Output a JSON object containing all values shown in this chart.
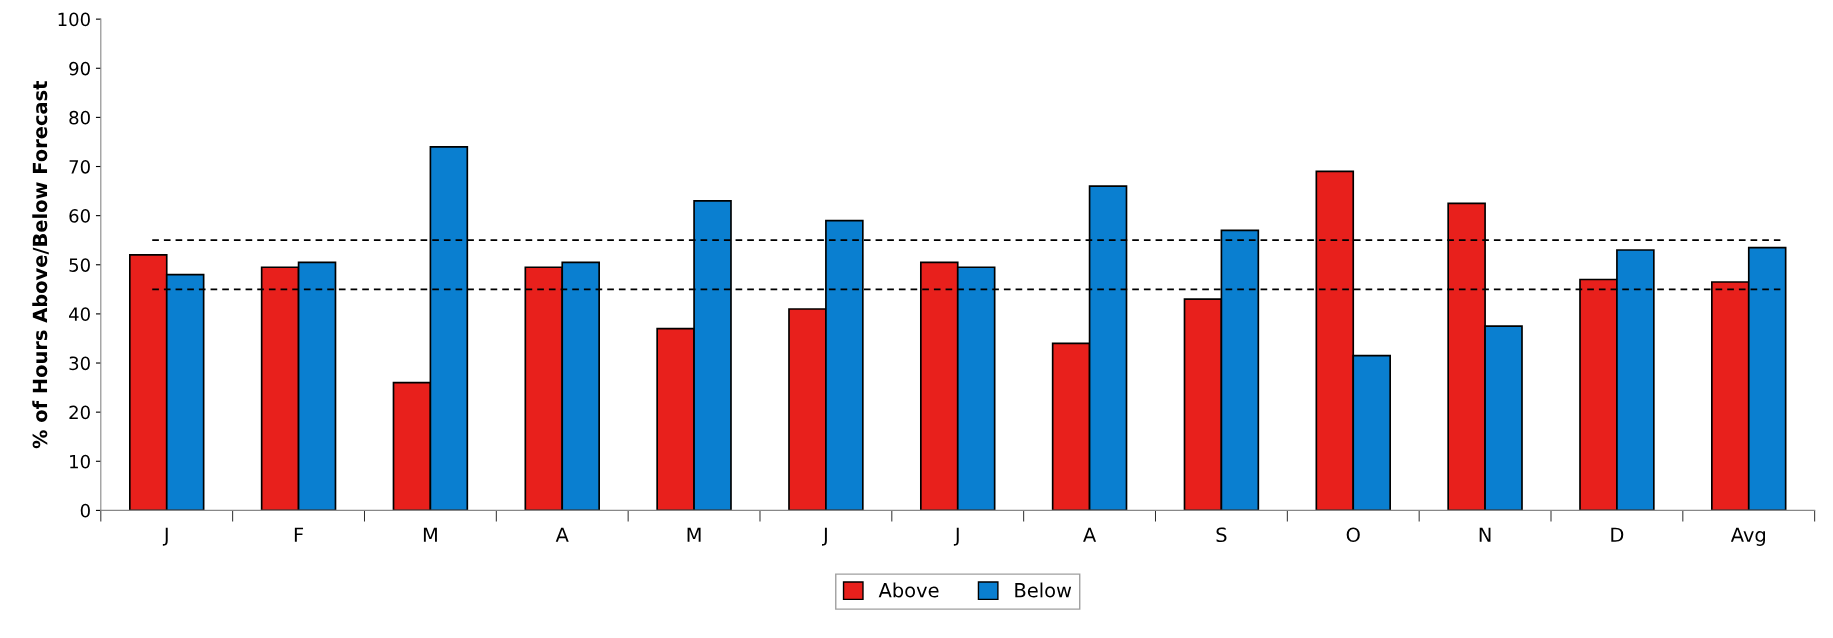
{
  "chart_data": {
    "type": "bar",
    "ylabel": "% of Hours Above/Below Forecast",
    "categories": [
      "J",
      "F",
      "M",
      "A",
      "M",
      "J",
      "J",
      "A",
      "S",
      "O",
      "N",
      "D",
      "Avg"
    ],
    "series": [
      {
        "name": "Above",
        "color": "#e8201c",
        "values": [
          52,
          49.5,
          26,
          49.5,
          37,
          41,
          50.5,
          34,
          43,
          69,
          62.5,
          47,
          46.5
        ]
      },
      {
        "name": "Below",
        "color": "#0a7fd0",
        "values": [
          48,
          50.5,
          74,
          50.5,
          63,
          59,
          49.5,
          66,
          57,
          31.5,
          37.5,
          53,
          53.5
        ]
      }
    ],
    "ylim": [
      0,
      100
    ],
    "yticks": [
      0,
      10,
      20,
      30,
      40,
      50,
      60,
      70,
      80,
      90,
      100
    ],
    "ref_lines": [
      {
        "axis": "y",
        "value": 55,
        "line_style": "dashed",
        "color": "#000000"
      },
      {
        "axis": "y",
        "value": 45,
        "line_style": "dashed",
        "color": "#000000"
      }
    ],
    "grid": false,
    "legend": "bottom"
  }
}
